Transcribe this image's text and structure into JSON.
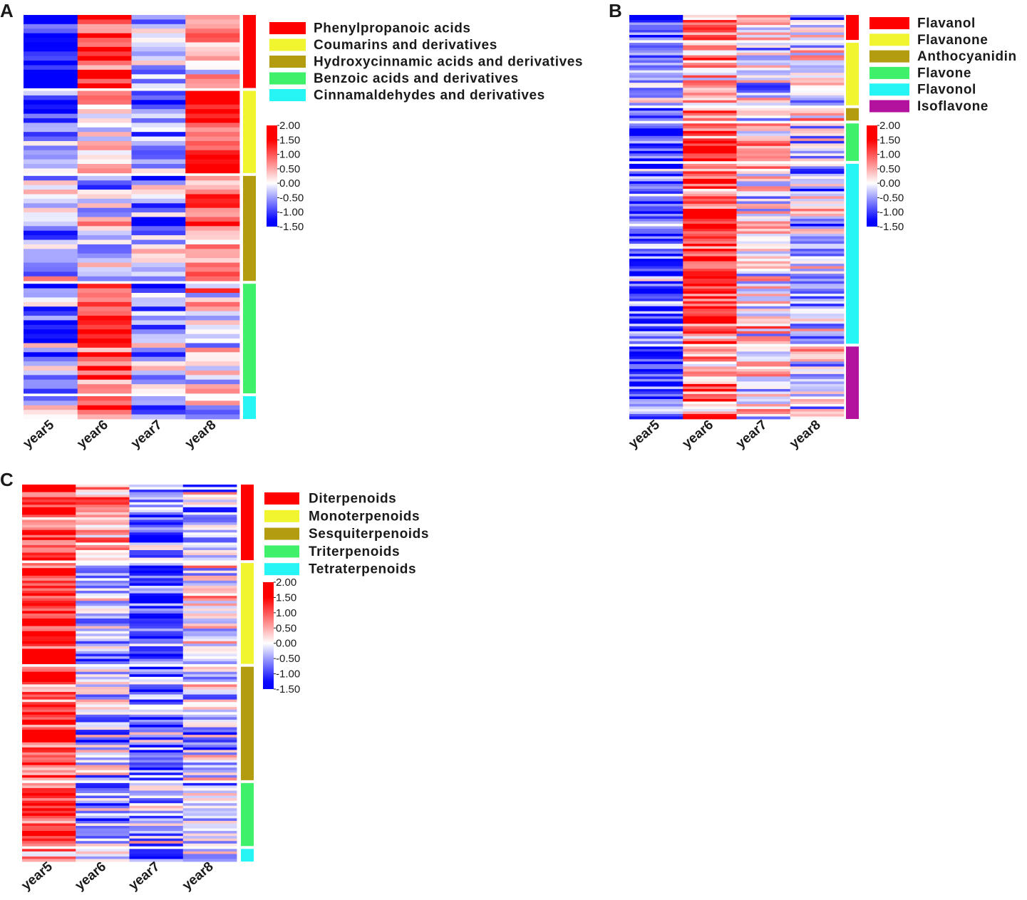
{
  "colors": {
    "high": "#ff0000",
    "mid": "#ffffff",
    "low": "#0000ff",
    "group_palette": [
      "#ff0000",
      "#f0f530",
      "#b39c10",
      "#3ff06a",
      "#26f5f5",
      "#b3129f"
    ]
  },
  "chart_data": [
    {
      "type": "heatmap",
      "panel": "A",
      "columns": [
        "year5",
        "year6",
        "year7",
        "year8"
      ],
      "value_range": [
        -1.5,
        2.0
      ],
      "scale_ticks": [
        "2.00",
        "1.50",
        "1.00",
        "0.50",
        "0.00",
        "-0.50",
        "-1.00",
        "-1.50"
      ],
      "groups": [
        {
          "name": "Phenylpropanoic acids",
          "color": "#ff0000",
          "rows": 16,
          "pattern": [
            -1.3,
            1.4,
            -0.4,
            0.3
          ]
        },
        {
          "name": "Coumarins and derivatives",
          "color": "#f0f530",
          "rows": 18,
          "pattern": [
            -0.8,
            0.3,
            -0.9,
            1.5
          ]
        },
        {
          "name": "Hydroxycinnamic acids and derivatives",
          "color": "#b39c10",
          "rows": 23,
          "pattern": [
            -0.4,
            -0.2,
            -0.5,
            1.0
          ]
        },
        {
          "name": "Benzoic acids and derivatives",
          "color": "#3ff06a",
          "rows": 24,
          "pattern": [
            -0.6,
            1.1,
            -0.5,
            0.2
          ]
        },
        {
          "name": "Cinnamaldehydes and derivatives",
          "color": "#26f5f5",
          "rows": 5,
          "pattern": [
            -0.5,
            0.9,
            -1.1,
            0.1
          ]
        }
      ]
    },
    {
      "type": "heatmap",
      "panel": "B",
      "columns": [
        "year5",
        "year6",
        "year7",
        "year8"
      ],
      "value_range": [
        -1.5,
        2.0
      ],
      "scale_ticks": [
        "2.00",
        "1.50",
        "1.00",
        "0.50",
        "0.00",
        "-0.50",
        "-1.00",
        "-1.50"
      ],
      "groups": [
        {
          "name": "Flavanol",
          "color": "#ff0000",
          "rows": 10,
          "pattern": [
            -0.9,
            1.0,
            -0.1,
            -0.3
          ]
        },
        {
          "name": "Flavanone",
          "color": "#f0f530",
          "rows": 25,
          "pattern": [
            -0.5,
            0.6,
            -0.4,
            0.0
          ]
        },
        {
          "name": "Anthocyanidin",
          "color": "#b39c10",
          "rows": 5,
          "pattern": [
            -1.0,
            0.8,
            0.0,
            0.3
          ]
        },
        {
          "name": "Flavone",
          "color": "#3ff06a",
          "rows": 15,
          "pattern": [
            -1.0,
            1.3,
            0.3,
            -0.2
          ]
        },
        {
          "name": "Flavonol",
          "color": "#26f5f5",
          "rows": 72,
          "pattern": [
            -0.8,
            1.1,
            0.1,
            -0.3
          ]
        },
        {
          "name": "Isoflavone",
          "color": "#b3129f",
          "rows": 29,
          "pattern": [
            -0.9,
            0.7,
            0.2,
            -0.1
          ]
        }
      ]
    },
    {
      "type": "heatmap",
      "panel": "C",
      "columns": [
        "year5",
        "year6",
        "year7",
        "year8"
      ],
      "value_range": [
        -1.5,
        2.0
      ],
      "scale_ticks": [
        "2.00",
        "1.50",
        "1.00",
        "0.50",
        "0.00",
        "-0.50",
        "-1.00",
        "-1.50"
      ],
      "groups": [
        {
          "name": "Diterpenoids",
          "color": "#ff0000",
          "rows": 30,
          "pattern": [
            1.1,
            0.3,
            -0.6,
            -0.3
          ]
        },
        {
          "name": "Monoterpenoids",
          "color": "#f0f530",
          "rows": 40,
          "pattern": [
            1.5,
            -0.5,
            -0.9,
            -0.1
          ]
        },
        {
          "name": "Sesquiterpenoids",
          "color": "#b39c10",
          "rows": 45,
          "pattern": [
            1.2,
            -0.2,
            -0.7,
            -0.2
          ]
        },
        {
          "name": "Triterpenoids",
          "color": "#3ff06a",
          "rows": 25,
          "pattern": [
            1.0,
            -0.4,
            -0.4,
            -0.1
          ]
        },
        {
          "name": "Tetraterpenoids",
          "color": "#26f5f5",
          "rows": 5,
          "pattern": [
            0.8,
            -0.6,
            -0.7,
            -0.2
          ]
        }
      ]
    }
  ]
}
